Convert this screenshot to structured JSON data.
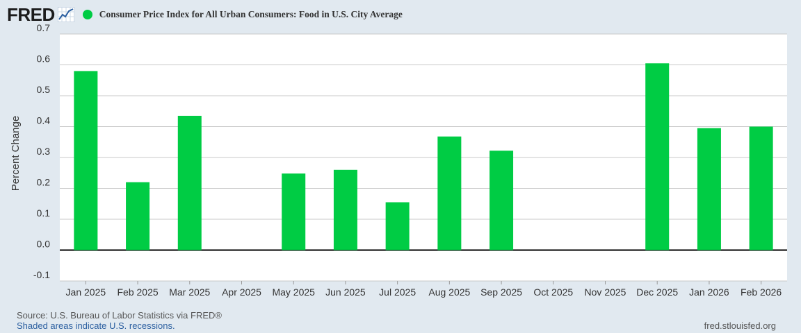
{
  "header": {
    "logo": "FRED",
    "series_title": "Consumer Price Index for All Urban Consumers: Food in U.S. City Average",
    "series_color": "#00cc44"
  },
  "footer": {
    "source": "Source: U.S. Bureau of Labor Statistics via FRED®",
    "shaded_note": "Shaded areas indicate U.S. recessions.",
    "url": "fred.stlouisfed.org"
  },
  "chart_data": {
    "type": "bar",
    "categories": [
      "Jan 2025",
      "Feb 2025",
      "Mar 2025",
      "Apr 2025",
      "May 2025",
      "Jun 2025",
      "Jul 2025",
      "Aug 2025",
      "Sep 2025",
      "Oct 2025",
      "Nov 2025",
      "Dec 2025",
      "Jan 2026",
      "Feb 2026"
    ],
    "series": [
      {
        "name": "Consumer Price Index for All Urban Consumers: Food in U.S. City Average",
        "color": "#00cc44",
        "values": [
          0.58,
          0.22,
          0.435,
          null,
          0.248,
          0.26,
          0.155,
          0.368,
          0.322,
          null,
          null,
          0.605,
          0.395,
          0.4
        ]
      }
    ],
    "title": "",
    "xlabel": "",
    "ylabel": "Percent Change",
    "ylim": [
      -0.1,
      0.7
    ],
    "yticks": [
      "-0.1",
      "0.0",
      "0.1",
      "0.2",
      "0.3",
      "0.4",
      "0.5",
      "0.6",
      "0.7"
    ],
    "grid": true,
    "plot_background": "#ffffff",
    "page_background": "#e1e9f0"
  }
}
